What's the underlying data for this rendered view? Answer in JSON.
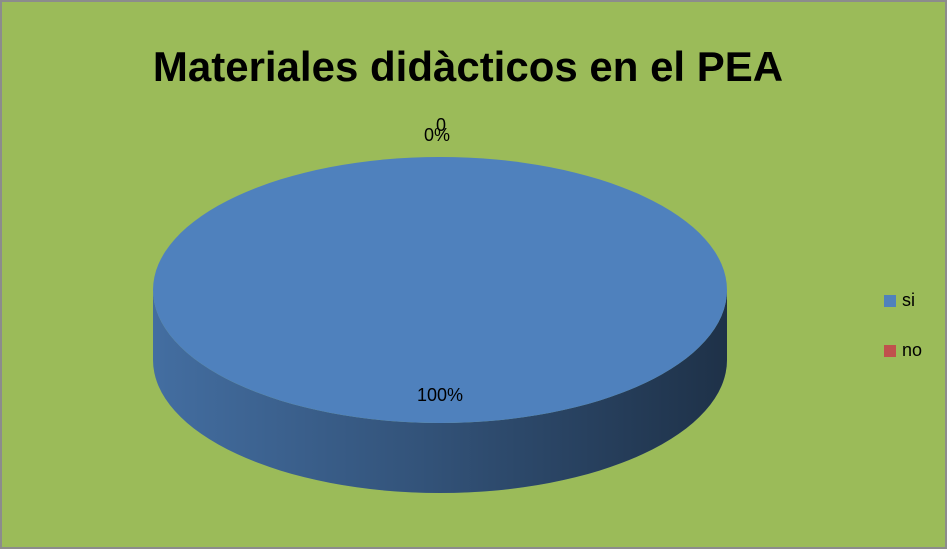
{
  "chart_data": {
    "type": "pie",
    "title": "Materiales didàcticos en el PEA",
    "categories": [
      "si",
      "no"
    ],
    "series": [
      {
        "values": [
          100,
          0
        ],
        "value_labels": [
          "100%",
          "0%"
        ],
        "colors": [
          "#4f81bd",
          "#c0504d"
        ]
      }
    ],
    "annotations": [
      "0"
    ],
    "legend": "right",
    "background": "#9bbb59"
  }
}
